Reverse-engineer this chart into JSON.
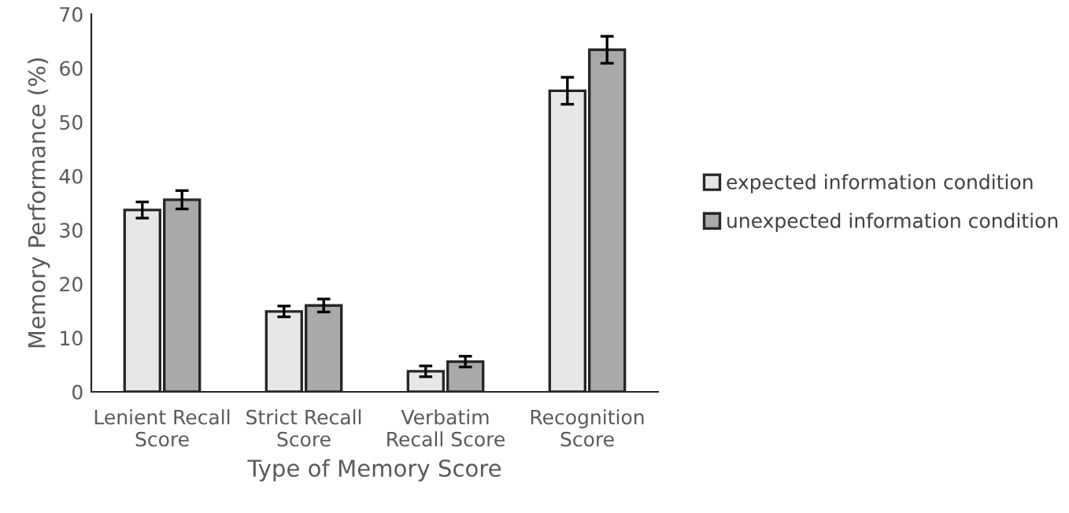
{
  "chart_data": {
    "type": "bar",
    "xlabel": "Type of Memory Score",
    "ylabel": "Memory Performance (%)",
    "categories": [
      "Lenient Recall\nScore",
      "Strict Recall\nScore",
      "Verbatim\nRecall Score",
      "Recognition\nScore"
    ],
    "series": [
      {
        "name": "expected information condition",
        "color": "#e7e7e7",
        "values": [
          33.7,
          14.9,
          3.8,
          55.8
        ],
        "errors": [
          1.5,
          1.0,
          1.0,
          2.5
        ]
      },
      {
        "name": "unexpected information condition",
        "color": "#a9a9a9",
        "values": [
          35.6,
          16.0,
          5.6,
          63.4
        ],
        "errors": [
          1.7,
          1.2,
          1.0,
          2.5
        ]
      }
    ],
    "ylim": [
      0,
      70
    ],
    "yticks": [
      0,
      10,
      20,
      30,
      40,
      50,
      60,
      70
    ],
    "grid": false,
    "legend": "right"
  }
}
